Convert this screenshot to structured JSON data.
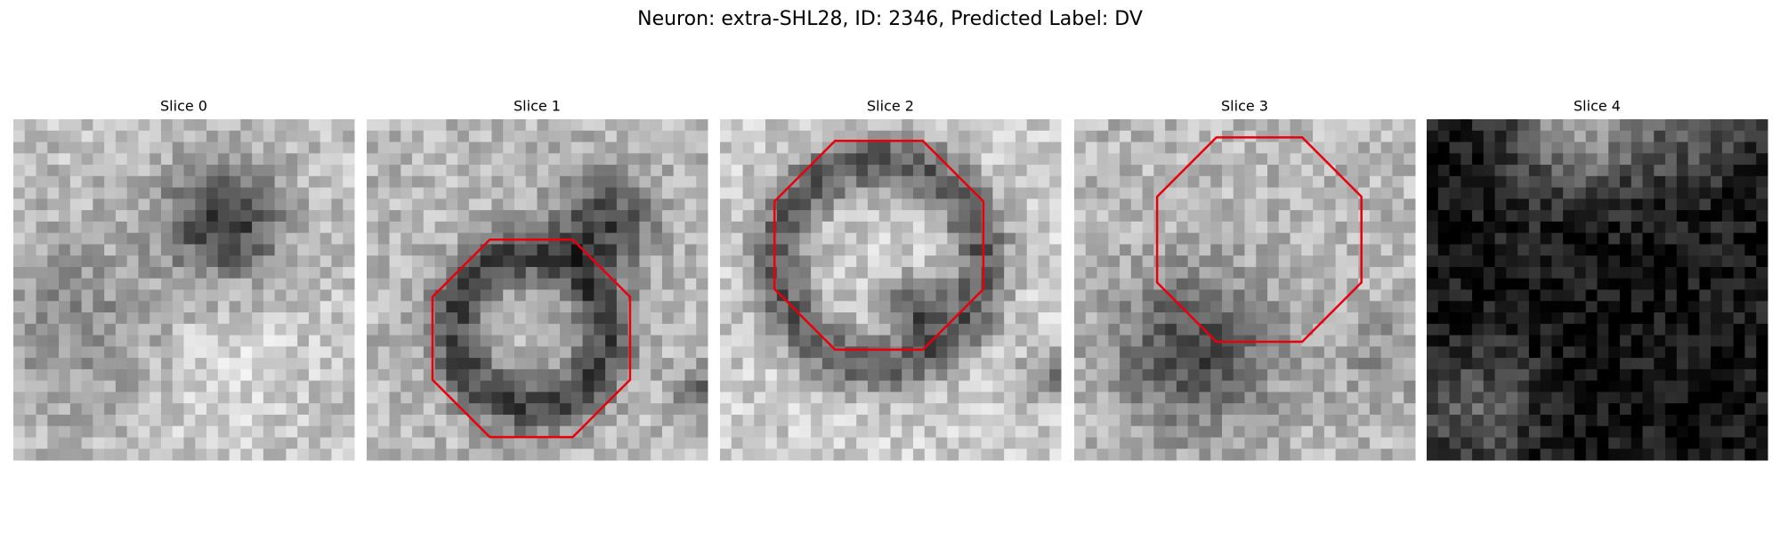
{
  "title": "Neuron: extra-SHL28, ID: 2346, Predicted Label: DV",
  "panels": [
    {
      "title": "Slice 0"
    },
    {
      "title": "Slice 1"
    },
    {
      "title": "Slice 2"
    },
    {
      "title": "Slice 3"
    },
    {
      "title": "Slice 4"
    }
  ]
}
